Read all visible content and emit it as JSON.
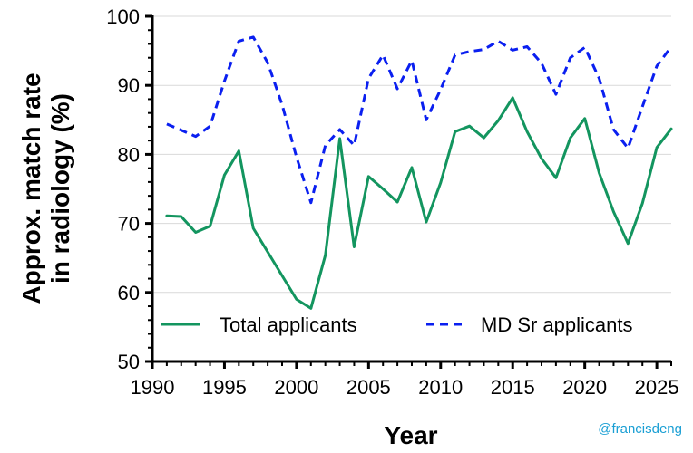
{
  "chart_data": {
    "type": "line",
    "xlabel": "Year",
    "ylabel_line1": "Approx. match rate",
    "ylabel_line2": "in radiology (%)",
    "xlim": [
      1990,
      2026
    ],
    "ylim": [
      50,
      100
    ],
    "xticks": [
      1990,
      1995,
      2000,
      2005,
      2010,
      2015,
      2020,
      2025
    ],
    "yticks": [
      50,
      60,
      70,
      80,
      90,
      100
    ],
    "grid": "horizontal",
    "legend_position": "bottom",
    "series": [
      {
        "name": "Total applicants",
        "color": "#13955f",
        "style": "solid",
        "x": [
          1991,
          1992,
          1993,
          1994,
          1995,
          1996,
          1997,
          2000,
          2001,
          2002,
          2003,
          2004,
          2005,
          2006,
          2007,
          2008,
          2009,
          2010,
          2011,
          2012,
          2013,
          2014,
          2015,
          2016,
          2017,
          2018,
          2019,
          2020,
          2021,
          2022,
          2023,
          2024,
          2025,
          2026
        ],
        "y": [
          71.1,
          71.0,
          68.7,
          69.6,
          77.0,
          80.5,
          69.3,
          59.0,
          57.7,
          65.4,
          82.3,
          66.6,
          76.8,
          75.0,
          73.1,
          78.1,
          70.2,
          75.9,
          83.3,
          84.1,
          82.4,
          84.9,
          88.2,
          83.3,
          79.4,
          76.6,
          82.4,
          85.2,
          77.3,
          71.7,
          67.1,
          72.9,
          81.0,
          83.7
        ]
      },
      {
        "name": "MD Sr applicants",
        "color": "#0a1ff0",
        "style": "dashed",
        "x": [
          1991,
          1992,
          1993,
          1994,
          1995,
          1996,
          1997,
          1998,
          1999,
          2000,
          2001,
          2002,
          2003,
          2004,
          2005,
          2006,
          2007,
          2008,
          2009,
          2010,
          2011,
          2012,
          2013,
          2014,
          2015,
          2016,
          2017,
          2018,
          2019,
          2020,
          2021,
          2022,
          2023,
          2024,
          2025,
          2026
        ],
        "y": [
          84.4,
          83.5,
          82.6,
          84.1,
          90.6,
          96.4,
          97.0,
          93.3,
          87.2,
          79.6,
          73.0,
          81.3,
          83.6,
          81.3,
          91.0,
          94.4,
          89.5,
          93.6,
          85.0,
          89.4,
          94.4,
          94.9,
          95.2,
          96.4,
          95.1,
          95.6,
          93.2,
          88.7,
          94.0,
          95.5,
          91.0,
          83.6,
          80.9,
          86.9,
          92.8,
          95.6
        ]
      }
    ]
  },
  "credit": "@francisdeng"
}
